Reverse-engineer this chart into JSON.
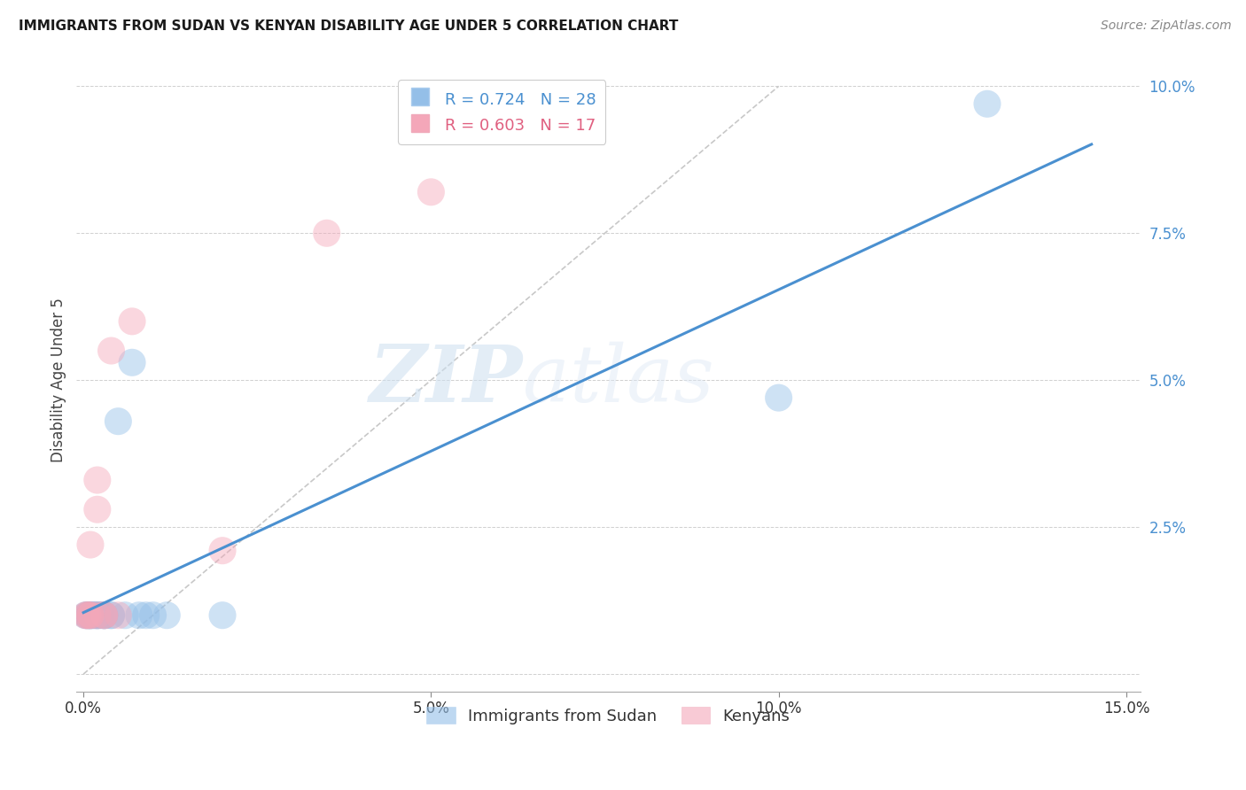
{
  "title": "IMMIGRANTS FROM SUDAN VS KENYAN DISABILITY AGE UNDER 5 CORRELATION CHART",
  "source": "Source: ZipAtlas.com",
  "ylabel": "Disability Age Under 5",
  "xlim": [
    0,
    0.15
  ],
  "ylim": [
    0,
    0.1
  ],
  "blue_color": "#94bfe8",
  "pink_color": "#f4a7b9",
  "blue_line_color": "#4a90d0",
  "pink_line_color": "#e06080",
  "diag_line_color": "#c8c8c8",
  "background_color": "#ffffff",
  "grid_color": "#d0d0d0",
  "legend_r1": "R = 0.724",
  "legend_n1": "N = 28",
  "legend_r2": "R = 0.603",
  "legend_n2": "N = 17",
  "blue_x": [
    0.0003,
    0.0005,
    0.0006,
    0.0008,
    0.001,
    0.001,
    0.001,
    0.0015,
    0.0015,
    0.002,
    0.002,
    0.002,
    0.0025,
    0.003,
    0.003,
    0.003,
    0.004,
    0.004,
    0.005,
    0.006,
    0.007,
    0.008,
    0.009,
    0.01,
    0.012,
    0.02,
    0.1,
    0.13
  ],
  "blue_y": [
    0.01,
    0.01,
    0.01,
    0.01,
    0.01,
    0.01,
    0.01,
    0.01,
    0.01,
    0.01,
    0.01,
    0.01,
    0.01,
    0.01,
    0.01,
    0.01,
    0.01,
    0.01,
    0.043,
    0.01,
    0.053,
    0.01,
    0.01,
    0.01,
    0.01,
    0.01,
    0.047,
    0.097
  ],
  "pink_x": [
    0.0003,
    0.0005,
    0.0006,
    0.001,
    0.001,
    0.001,
    0.002,
    0.002,
    0.002,
    0.003,
    0.003,
    0.004,
    0.005,
    0.007,
    0.02,
    0.035,
    0.05
  ],
  "pink_y": [
    0.01,
    0.01,
    0.01,
    0.01,
    0.01,
    0.022,
    0.01,
    0.028,
    0.033,
    0.01,
    0.01,
    0.055,
    0.01,
    0.06,
    0.021,
    0.075,
    0.082
  ],
  "watermark_zip": "ZIP",
  "watermark_atlas": "atlas"
}
